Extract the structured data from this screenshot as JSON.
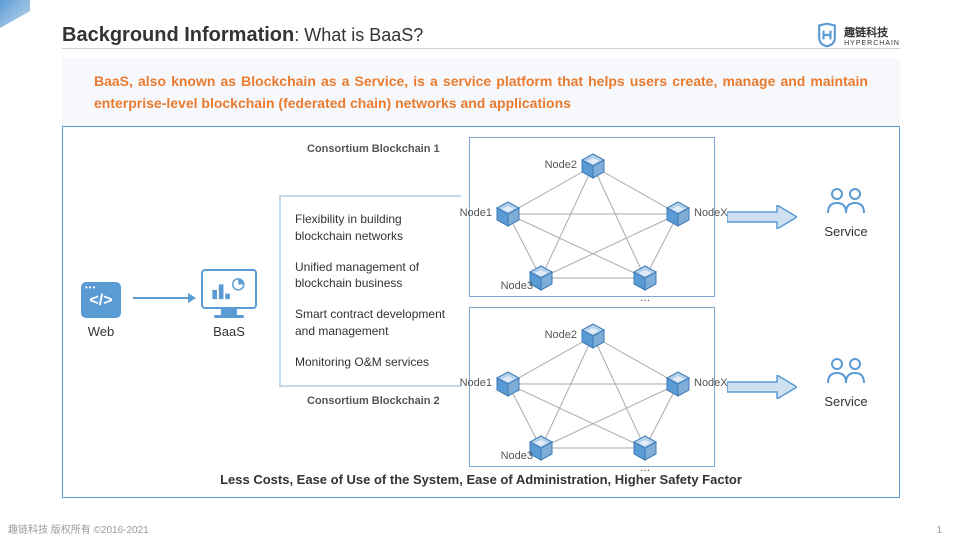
{
  "header": {
    "title_bold": "Background Information",
    "title_sub": ": What is BaaS?",
    "logo_cn": "趣链科技",
    "logo_en": "HYPERCHAIN"
  },
  "description": "BaaS, also known as Blockchain as a Service, is a service platform that helps users create, manage and maintain enterprise-level blockchain (federated chain) networks and applications",
  "web": {
    "label": "Web",
    "symbol": "</>"
  },
  "baas": {
    "label": "BaaS"
  },
  "features": {
    "f1": "Flexibility in building blockchain networks",
    "f2": "Unified management of blockchain business",
    "f3": "Smart contract development and management",
    "f4": "Monitoring O&M services"
  },
  "consortium": {
    "label1": "Consortium Blockchain 1",
    "label2": "Consortium Blockchain 2"
  },
  "nodes": {
    "n1": "Node1",
    "n2": "Node2",
    "n3": "Node3",
    "nx": "NodeX",
    "dots": "…"
  },
  "service": {
    "label": "Service"
  },
  "bottom": "Less Costs, Ease of Use of the System, Ease of Administration, Higher Safety Factor",
  "footer": "趣链科技 版权所有 ©2016-2021",
  "page": "1",
  "colors": {
    "primary": "#5b9bd5",
    "accent": "#e87b2f",
    "border": "#7ba7d0",
    "cube_light": "#87b3de",
    "cube_dark": "#3d7ab8"
  }
}
